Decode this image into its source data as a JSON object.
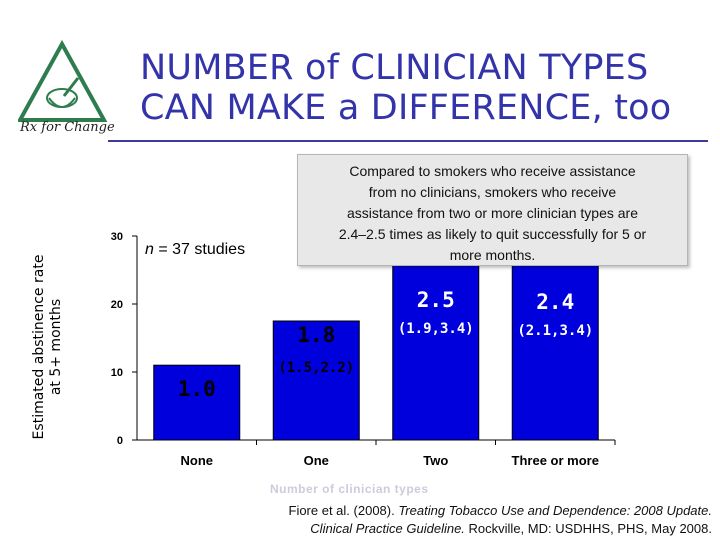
{
  "slide": {
    "title_line1": "NUMBER of CLINICIAN TYPES",
    "title_line2": "CAN MAKE a DIFFERENCE, too",
    "logo_text": "Rx for Change",
    "callout": "Compared to smokers who receive assistance\nfrom no clinicians, smokers who receive\nassistance from two or more clinician types are\n2.4–2.5 times as likely to quit successfully for 5 or\nmore months.",
    "citation_part1": "Fiore et al. (2008). ",
    "citation_italic1": "Treating Tobacco Use and Dependence: 2008 Update.",
    "citation_italic2": "Clinical Practice Guideline.",
    "citation_part2": " Rockville, MD: USDHHS, PHS, May 2008."
  },
  "colors": {
    "title": "#3333aa",
    "bar": "#0000dd",
    "logo": "#2e7d4f"
  },
  "chart_data": {
    "type": "bar",
    "categories": [
      "None",
      "One",
      "Two",
      "Three or more"
    ],
    "values": [
      1.0,
      1.8,
      2.5,
      2.4
    ],
    "value_labels": [
      "1.0",
      "1.8",
      "2.5",
      "2.4"
    ],
    "ci_labels": [
      "",
      "(1.5,2.2)",
      "(1.9,3.4)",
      "(2.1,3.4)"
    ],
    "bar_heights_estimated": [
      11,
      17.5,
      27.5,
      26.5
    ],
    "ylabel_line1": "Estimated abstinence rate",
    "ylabel_line2": "at 5+ months",
    "xlabel": "Number of clinician types",
    "yticks": [
      0,
      10,
      20,
      30
    ],
    "ylim": [
      0,
      30
    ],
    "annotation": "n = 37 studies",
    "grid": false
  }
}
